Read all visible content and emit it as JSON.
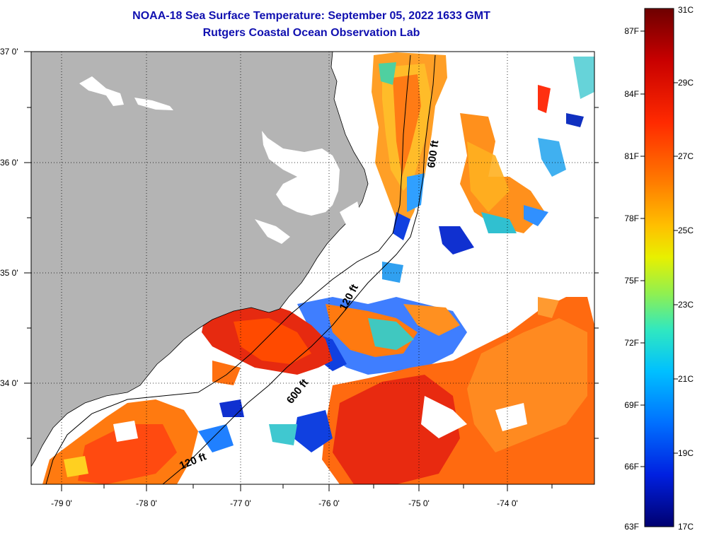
{
  "title": "NOAA-18 Sea Surface Temperature:  September 05, 2022 1633 GMT",
  "subtitle": "Rutgers Coastal Ocean Observation Lab",
  "lat_labels": [
    "37 0'",
    "36 0'",
    "35 0'",
    "34 0'"
  ],
  "lon_labels": [
    "-79 0'",
    "-78 0'",
    "-77 0'",
    "-76 0'",
    "-75 0'",
    "-74 0'"
  ],
  "contour_labels": [
    "600 ft",
    "120 ft",
    "600 ft",
    "120 ft"
  ],
  "colorbar": {
    "fahrenheit": [
      "87F",
      "84F",
      "81F",
      "78F",
      "75F",
      "72F",
      "69F",
      "66F",
      "63F"
    ],
    "celsius": [
      "31C",
      "29C",
      "27C",
      "25C",
      "23C",
      "21C",
      "19C",
      "17C"
    ],
    "colors": [
      "#7a0000",
      "#d40000",
      "#ff3000",
      "#ff7a00",
      "#ffb400",
      "#f0f000",
      "#a0f040",
      "#40f0b0",
      "#00d0ff",
      "#0090ff",
      "#0040ff",
      "#0000d0",
      "#000070"
    ]
  },
  "colors": {
    "land": "#b4b4b4",
    "ocean_nodata": "#ffffff",
    "title_text": "#1010b0"
  }
}
